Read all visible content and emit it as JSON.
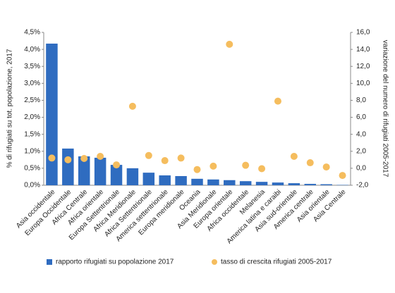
{
  "chart_data": {
    "type": "bar",
    "categories": [
      "Asia occidentale",
      "Europa Occidentale",
      "Africa Centrale",
      "Africa orientale",
      "Europa Settentrionale",
      "Africa Meridionale",
      "Africa Settentrionale",
      "America settentrionale",
      "Europa meridionale",
      "Oceania",
      "Asia Meridionale",
      "Europa orientale",
      "Africa occidentale",
      "Melanesia",
      "America latina e caraibi",
      "Asia sud-orientale",
      "America centrale",
      "Asia orientale",
      "Asia Centrale"
    ],
    "series": [
      {
        "name": "rapporto rifugiati su popolazione 2017",
        "type": "bar",
        "color": "#2f6cc0",
        "values": [
          4.17,
          1.08,
          0.85,
          0.81,
          0.6,
          0.5,
          0.37,
          0.29,
          0.27,
          0.19,
          0.17,
          0.15,
          0.12,
          0.1,
          0.08,
          0.06,
          0.04,
          0.03,
          0.01
        ]
      },
      {
        "name": "tasso di crescita rifugiati 2005-2017",
        "type": "scatter",
        "axis": "y2",
        "color": "#f5bd5e",
        "values": [
          1.2,
          1.0,
          1.15,
          1.4,
          0.4,
          7.3,
          1.5,
          0.9,
          1.2,
          -0.15,
          0.25,
          14.6,
          0.35,
          -0.05,
          7.9,
          1.4,
          0.65,
          0.15,
          -0.85
        ]
      }
    ],
    "y_label": "% di rifugiati su tot. popolazione, 2017",
    "y2_label": "variazione del numero di rifugiati 2005-2017",
    "ylim": [
      0,
      4.5
    ],
    "yticks": [
      {
        "value": 0,
        "label": "0,0%"
      },
      {
        "value": 0.5,
        "label": "0,5%"
      },
      {
        "value": 1,
        "label": "1,0%"
      },
      {
        "value": 1.5,
        "label": "1,5%"
      },
      {
        "value": 2,
        "label": "2,0%"
      },
      {
        "value": 2.5,
        "label": "2,5%"
      },
      {
        "value": 3,
        "label": "3,0%"
      },
      {
        "value": 3.5,
        "label": "3,5%"
      },
      {
        "value": 4,
        "label": "4,0%"
      },
      {
        "value": 4.5,
        "label": "4,5%"
      }
    ],
    "y2lim": [
      -2,
      16
    ],
    "y2ticks": [
      {
        "value": -2,
        "label": "-2,0"
      },
      {
        "value": 0,
        "label": "0,0"
      },
      {
        "value": 2,
        "label": "2,0"
      },
      {
        "value": 4,
        "label": "4,0"
      },
      {
        "value": 6,
        "label": "6,0"
      },
      {
        "value": 8,
        "label": "8,0"
      },
      {
        "value": 10,
        "label": "10,0"
      },
      {
        "value": 12,
        "label": "12,0"
      },
      {
        "value": 14,
        "label": "14,0"
      },
      {
        "value": 16,
        "label": "16,0"
      }
    ],
    "legend": "bottom"
  }
}
